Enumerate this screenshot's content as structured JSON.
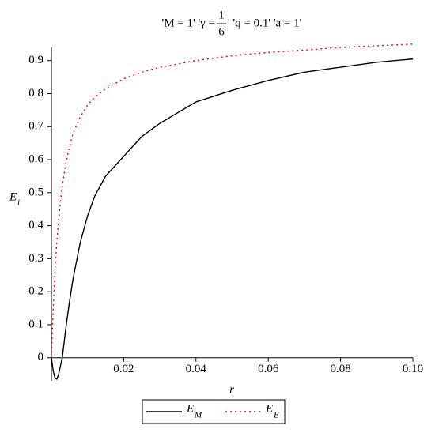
{
  "chart_data": {
    "type": "line",
    "title": {
      "before": "'M = 1' 'γ = ",
      "numerator": "1",
      "denominator": "6",
      "after": "' 'q = 0.1' 'a = 1'"
    },
    "xlabel": "r",
    "ylabel": "E",
    "ylabel_sub": "i",
    "x": [
      0,
      0.0005,
      0.001,
      0.0015,
      0.002,
      0.003,
      0.004,
      0.005,
      0.006,
      0.008,
      0.01,
      0.012,
      0.015,
      0.02,
      0.025,
      0.03,
      0.04,
      0.05,
      0.06,
      0.07,
      0.08,
      0.09,
      0.1
    ],
    "series": [
      {
        "name": "E",
        "subscript": "M",
        "color": "#000000",
        "dash": "solid",
        "values": [
          0,
          -0.04,
          -0.062,
          -0.065,
          -0.05,
          0,
          0.09,
          0.17,
          0.24,
          0.35,
          0.43,
          0.49,
          0.55,
          0.61,
          0.67,
          0.71,
          0.775,
          0.81,
          0.84,
          0.865,
          0.88,
          0.895,
          0.905
        ]
      },
      {
        "name": "E",
        "subscript": "E",
        "color": "#ff0000",
        "dash": "dotted",
        "values": [
          0,
          0.15,
          0.27,
          0.35,
          0.42,
          0.52,
          0.59,
          0.64,
          0.68,
          0.73,
          0.765,
          0.79,
          0.815,
          0.845,
          0.865,
          0.88,
          0.9,
          0.915,
          0.925,
          0.932,
          0.94,
          0.945,
          0.95
        ]
      }
    ],
    "xlim": [
      0,
      0.1
    ],
    "ylim": [
      -0.07,
      0.94
    ],
    "xticks": [
      0.02,
      0.04,
      0.06,
      0.08,
      {
        "value": 0.1,
        "label": "0.10"
      }
    ],
    "yticks": [
      0,
      0.1,
      0.2,
      0.3,
      0.4,
      0.5,
      0.6,
      0.7,
      0.8,
      0.9
    ],
    "legend": "bottom"
  }
}
